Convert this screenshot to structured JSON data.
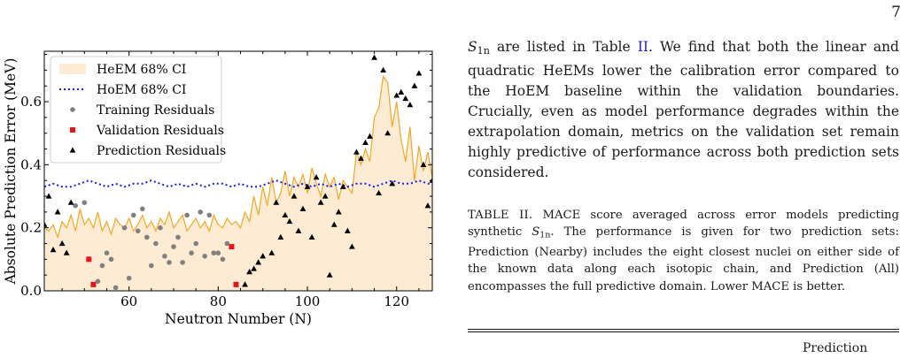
{
  "page_number": "7",
  "figure": {
    "chart_data": {
      "type": "scatter",
      "xlabel": "Neutron Number (N)",
      "ylabel": "Absolute Prediction Error (MeV)",
      "xlim": [
        41,
        128
      ],
      "ylim": [
        0,
        0.76
      ],
      "xticks": [
        60,
        80,
        100,
        120
      ],
      "yticks": [
        0.0,
        0.2,
        0.4,
        0.6
      ],
      "xtick_labels": [
        "60",
        "80",
        "100",
        "120"
      ],
      "ytick_labels": [
        "0.0",
        "0.2",
        "0.4",
        "0.6"
      ],
      "legend_placement": "top-left",
      "grid": false,
      "legend": [
        {
          "label": "HeEM 68% CI",
          "kind": "fill"
        },
        {
          "label": "HoEM 68% CI",
          "kind": "dotted"
        },
        {
          "label": "Training Residuals",
          "kind": "circle"
        },
        {
          "label": "Validation Residuals",
          "kind": "square"
        },
        {
          "label": "Prediction Residuals",
          "kind": "triangle"
        }
      ],
      "colors": {
        "heem_fill": "#fdebd3",
        "heem_line": "#f5a623",
        "hoem_line": "#1a1aee",
        "training": "#808080",
        "validation": "#e8141c",
        "prediction": "#000000"
      },
      "series": [
        {
          "name": "HeEM 68% CI",
          "x": [
            41,
            42,
            43,
            44,
            45,
            46,
            47,
            48,
            49,
            50,
            51,
            52,
            53,
            54,
            55,
            56,
            57,
            58,
            59,
            60,
            61,
            62,
            63,
            64,
            65,
            66,
            67,
            68,
            69,
            70,
            71,
            72,
            73,
            74,
            75,
            76,
            77,
            78,
            79,
            80,
            81,
            82,
            83,
            84,
            85,
            86,
            87,
            88,
            89,
            90,
            91,
            92,
            93,
            94,
            95,
            96,
            97,
            98,
            99,
            100,
            101,
            102,
            103,
            104,
            105,
            106,
            107,
            108,
            109,
            110,
            111,
            112,
            113,
            114,
            115,
            116,
            117,
            118,
            119,
            120,
            121,
            122,
            123,
            124,
            125,
            126,
            127,
            128
          ],
          "y": [
            0.2,
            0.19,
            0.21,
            0.17,
            0.22,
            0.2,
            0.24,
            0.19,
            0.26,
            0.21,
            0.23,
            0.2,
            0.25,
            0.19,
            0.22,
            0.18,
            0.23,
            0.21,
            0.2,
            0.23,
            0.19,
            0.21,
            0.24,
            0.2,
            0.22,
            0.19,
            0.23,
            0.21,
            0.25,
            0.2,
            0.22,
            0.24,
            0.19,
            0.21,
            0.23,
            0.2,
            0.22,
            0.19,
            0.24,
            0.21,
            0.2,
            0.23,
            0.21,
            0.22,
            0.2,
            0.25,
            0.22,
            0.3,
            0.24,
            0.33,
            0.27,
            0.36,
            0.28,
            0.31,
            0.38,
            0.3,
            0.36,
            0.33,
            0.37,
            0.31,
            0.39,
            0.34,
            0.3,
            0.37,
            0.33,
            0.36,
            0.29,
            0.35,
            0.33,
            0.31,
            0.44,
            0.4,
            0.45,
            0.41,
            0.55,
            0.58,
            0.68,
            0.66,
            0.52,
            0.6,
            0.48,
            0.41,
            0.52,
            0.35,
            0.46,
            0.38,
            0.44,
            0.36
          ]
        },
        {
          "name": "HoEM 68% CI",
          "x": [
            41,
            43,
            45,
            47,
            49,
            51,
            53,
            55,
            57,
            59,
            61,
            63,
            65,
            67,
            69,
            71,
            73,
            75,
            77,
            79,
            81,
            83,
            85,
            87,
            89,
            91,
            93,
            95,
            97,
            99,
            101,
            103,
            105,
            107,
            109,
            111,
            113,
            115,
            117,
            119,
            121,
            123,
            125,
            127,
            128
          ],
          "y": [
            0.33,
            0.34,
            0.33,
            0.33,
            0.34,
            0.35,
            0.34,
            0.33,
            0.34,
            0.33,
            0.34,
            0.34,
            0.35,
            0.34,
            0.33,
            0.34,
            0.33,
            0.34,
            0.33,
            0.34,
            0.34,
            0.33,
            0.34,
            0.33,
            0.33,
            0.34,
            0.35,
            0.34,
            0.33,
            0.34,
            0.33,
            0.34,
            0.33,
            0.34,
            0.33,
            0.34,
            0.34,
            0.33,
            0.34,
            0.35,
            0.34,
            0.34,
            0.35,
            0.34,
            0.34
          ]
        },
        {
          "name": "Training Residuals",
          "x": [
            48,
            50,
            53,
            54,
            55,
            56,
            57,
            59,
            60,
            61,
            62,
            63,
            64,
            65,
            66,
            67,
            68,
            69,
            70,
            71,
            72,
            73,
            74,
            75,
            76,
            77,
            78,
            79,
            80,
            81,
            82
          ],
          "y": [
            0.27,
            0.28,
            0.03,
            0.08,
            0.12,
            0.1,
            0.01,
            0.2,
            0.04,
            0.24,
            0.19,
            0.26,
            0.17,
            0.08,
            0.15,
            0.2,
            0.11,
            0.09,
            0.14,
            0.17,
            0.09,
            0.24,
            0.12,
            0.15,
            0.25,
            0.11,
            0.24,
            0.12,
            0.12,
            0.1,
            0.15
          ]
        },
        {
          "name": "Validation Residuals",
          "x": [
            51,
            52,
            83,
            84
          ],
          "y": [
            0.1,
            0.02,
            0.14,
            0.02
          ]
        },
        {
          "name": "Prediction Residuals",
          "x": [
            41,
            42,
            43,
            44,
            45,
            46,
            47,
            86,
            87,
            88,
            89,
            90,
            92,
            93,
            94,
            95,
            96,
            97,
            98,
            99,
            100,
            101,
            102,
            103,
            104,
            105,
            106,
            107,
            108,
            109,
            110,
            111,
            112,
            113,
            114,
            115,
            116,
            117,
            118,
            119,
            120,
            121,
            122,
            123,
            124,
            125,
            126,
            127,
            128
          ],
          "y": [
            0.21,
            0.3,
            0.13,
            0.25,
            0.15,
            0.12,
            0.28,
            0.02,
            0.06,
            0.07,
            0.09,
            0.11,
            0.12,
            0.28,
            0.17,
            0.24,
            0.22,
            0.3,
            0.19,
            0.26,
            0.33,
            0.17,
            0.36,
            0.28,
            0.3,
            0.05,
            0.21,
            0.25,
            0.33,
            0.19,
            0.14,
            0.44,
            0.42,
            0.47,
            0.49,
            0.74,
            0.31,
            0.7,
            0.5,
            0.34,
            0.62,
            0.63,
            0.61,
            0.59,
            0.65,
            0.69,
            0.4,
            0.27,
            0.35
          ]
        }
      ]
    }
  },
  "body_text": {
    "p1_sym": "S",
    "p1_sub": "1n",
    "p1_a": " are listed in Table ",
    "p1_ref": "II",
    "p1_b": ". We find that both the linear and quadratic HeEMs lower the calibration error compared to the HoEM baseline within the validation boundaries. Crucially, even as model performance degrades within the extrapolation domain, metrics on the validation set remain highly predictive of performance across both prediction sets considered."
  },
  "table": {
    "caption_label": "TABLE II.",
    "caption_a": " MACE score averaged across error models predicting synthetic ",
    "caption_sym": "S",
    "caption_sub": "1n",
    "caption_b": ". The performance is given for two prediction sets: Prediction (Nearby) includes the eight closest nuclei on either side of the known data along each isotopic chain, and Prediction (All) encompasses the full predictive domain. Lower MACE is better.",
    "header_group": "Prediction"
  }
}
